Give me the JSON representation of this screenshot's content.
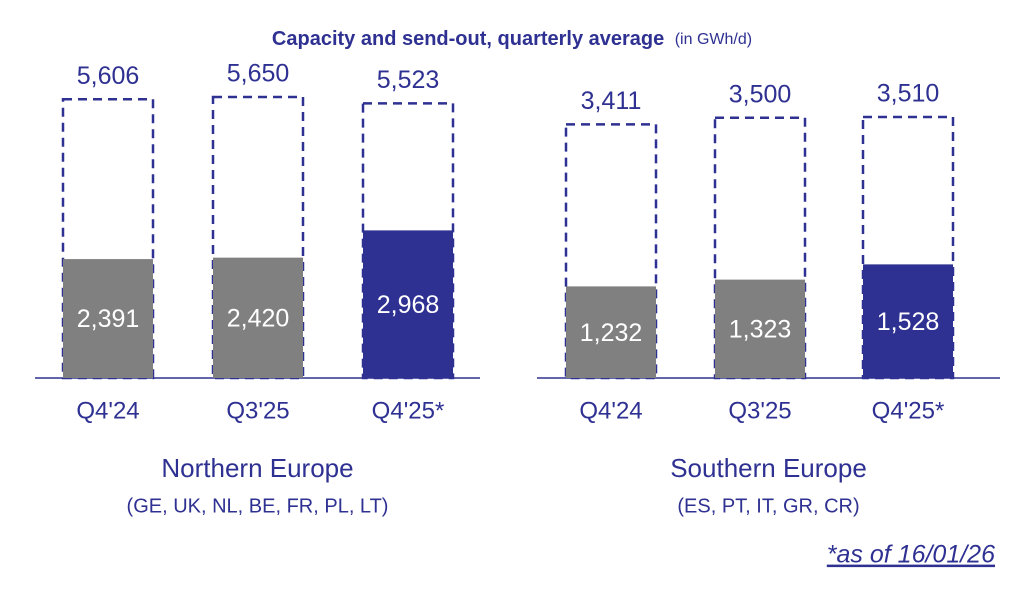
{
  "title": "Capacity and send-out, quarterly average",
  "unit": "(in GWh/d)",
  "footnote": "*as of 16/01/26",
  "chart_data": [
    {
      "type": "bar",
      "title": "Northern Europe",
      "subtitle": "(GE, UK, NL, BE, FR, PL, LT)",
      "categories": [
        "Q4'24",
        "Q3'25",
        "Q4'25*"
      ],
      "series": [
        {
          "values": [
            5606,
            5650,
            5523
          ],
          "value_labels": [
            "5,606",
            "5,650",
            "5,523"
          ],
          "color": "#2e3192",
          "style": "dashed"
        },
        {
          "values": [
            2391,
            2420,
            2968
          ],
          "value_labels": [
            "2,391",
            "2,420",
            "2,968"
          ],
          "colors": [
            "#808080",
            "#808080",
            "#2e3192"
          ],
          "style": "filled"
        }
      ]
    },
    {
      "type": "bar",
      "title": "Southern Europe",
      "subtitle": "(ES, PT, IT, GR, CR)",
      "categories": [
        "Q4'24",
        "Q3'25",
        "Q4'25*"
      ],
      "series": [
        {
          "values": [
            3411,
            3500,
            3510
          ],
          "value_labels": [
            "3,411",
            "3,500",
            "3,510"
          ],
          "color": "#2e3192",
          "style": "dashed"
        },
        {
          "values": [
            1232,
            1323,
            1528
          ],
          "value_labels": [
            "1,232",
            "1,323",
            "1,528"
          ],
          "colors": [
            "#808080",
            "#808080",
            "#2e3192"
          ],
          "style": "filled"
        }
      ]
    }
  ]
}
